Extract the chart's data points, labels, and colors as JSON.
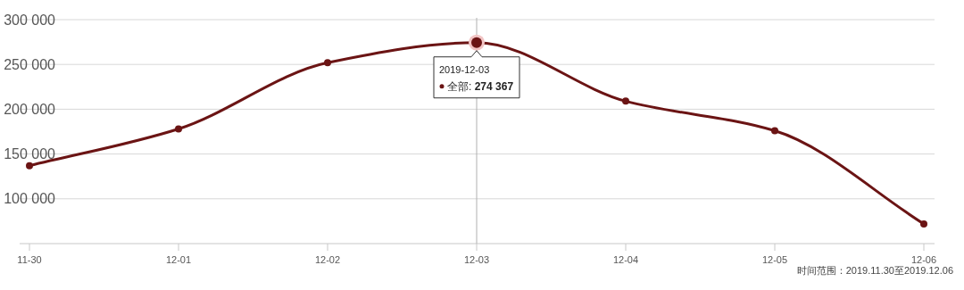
{
  "chart_data": {
    "type": "line",
    "categories": [
      "11-30",
      "12-01",
      "12-02",
      "12-03",
      "12-04",
      "12-05",
      "12-06"
    ],
    "series": [
      {
        "color": "#6b1414",
        "values": [
          137000,
          178000,
          252000,
          274367,
          209000,
          176000,
          72000
        ]
      }
    ],
    "ylim": [
      50000,
      300000
    ],
    "yticks": [
      {
        "value": 100000,
        "label": "100 000"
      },
      {
        "value": 150000,
        "label": "150 000"
      },
      {
        "value": 200000,
        "label": "200 000"
      },
      {
        "value": 250000,
        "label": "250 000"
      },
      {
        "value": 300000,
        "label": "300 000"
      }
    ],
    "grid": "y",
    "marker": "circle",
    "line_style": "solid",
    "ref_lines": [
      {
        "axis": "x",
        "value": "12-03",
        "color": "#b0b0b0"
      }
    ],
    "annotations": [
      {
        "text": "2019-12-03",
        "x": "12-03",
        "y": 274367
      },
      "全部: **274 367**",
      "时间范围：2019.11.30至2019.12.06"
    ]
  }
}
